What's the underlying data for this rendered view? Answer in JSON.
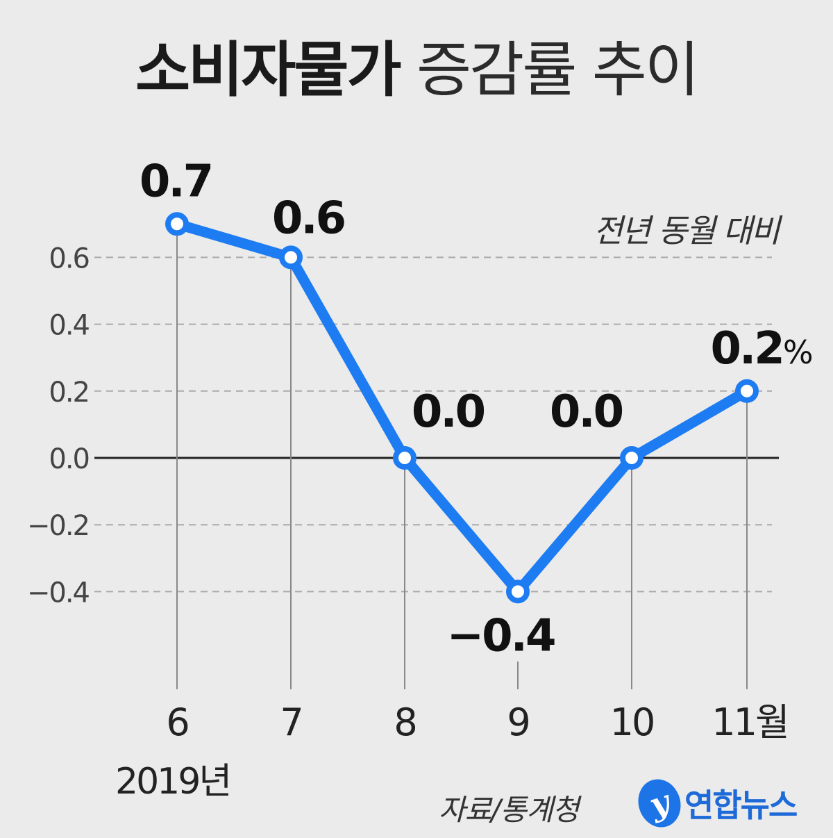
{
  "header": {
    "title_bold": "소비자물가",
    "title_light": "증감률 추이",
    "subtitle": "전년 동월 대비"
  },
  "footer": {
    "year_label": "2019년",
    "source": "자료/통계청",
    "logo_text": "연합뉴스"
  },
  "colors": {
    "line": "#1d7cf2",
    "marker_fill": "#ffffff",
    "zero_line": "#222222",
    "grid": "#aaaaaa",
    "background": "#ebebeb",
    "logo": "#1d6ad8"
  },
  "chart_data": {
    "type": "line",
    "categories": [
      "6",
      "7",
      "8",
      "9",
      "10",
      "11월"
    ],
    "values": [
      0.7,
      0.6,
      0.0,
      -0.4,
      0.0,
      0.2
    ],
    "data_labels": [
      "0.7",
      "0.6",
      "0.0",
      "−0.4",
      "0.0",
      "0.2"
    ],
    "last_label_unit": "%",
    "y_ticks": [
      0.6,
      0.4,
      0.2,
      0.0,
      -0.2,
      -0.4
    ],
    "y_tick_labels": [
      "0.6",
      "0.4",
      "0.2",
      "0.0",
      "−0.2",
      "−0.4"
    ],
    "ylim": [
      -0.4,
      0.7
    ],
    "grid": "dashed horizontal",
    "title": "소비자물가 증감률 추이",
    "subtitle": "전년 동월 대비"
  }
}
